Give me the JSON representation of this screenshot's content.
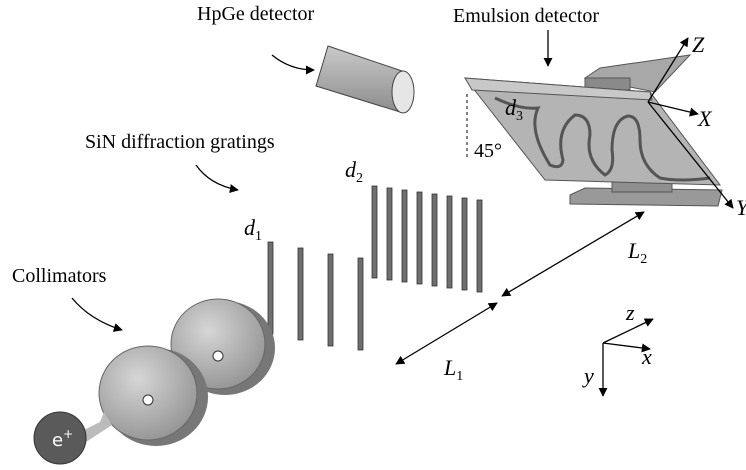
{
  "labels": {
    "hpge_detector": "HpGe detector",
    "emulsion_detector": "Emulsion detector",
    "gratings": "SiN diffraction gratings",
    "collimators": "Collimators",
    "angle": "45°"
  },
  "symbols": {
    "d1": {
      "base": "d",
      "sub": "1"
    },
    "d2": {
      "base": "d",
      "sub": "2"
    },
    "d3": {
      "base": "d",
      "sub": "3"
    },
    "L1": {
      "base": "L",
      "sub": "1"
    },
    "L2": {
      "base": "L",
      "sub": "2"
    },
    "positron": {
      "base": "e",
      "sup": "+"
    }
  },
  "axes": {
    "detector": {
      "x": "X",
      "y": "Y",
      "z": "Z"
    },
    "lab": {
      "x": "x",
      "y": "y",
      "z": "z"
    }
  }
}
